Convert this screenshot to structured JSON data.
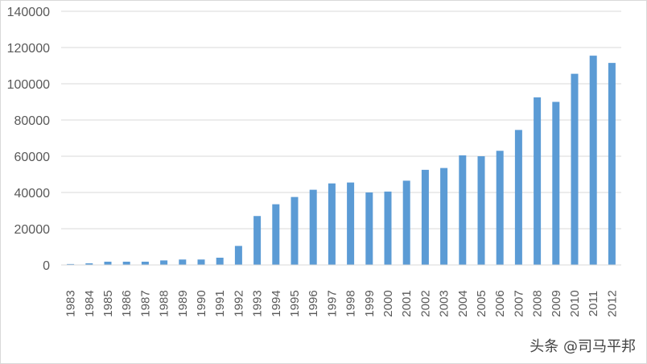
{
  "chart_data": {
    "type": "bar",
    "categories": [
      "1983",
      "1984",
      "1985",
      "1986",
      "1987",
      "1988",
      "1989",
      "1990",
      "1991",
      "1992",
      "1993",
      "1994",
      "1995",
      "1996",
      "1997",
      "1998",
      "1999",
      "2000",
      "2001",
      "2002",
      "2003",
      "2004",
      "2005",
      "2006",
      "2007",
      "2008",
      "2009",
      "2010",
      "2011",
      "2012"
    ],
    "values": [
      500,
      900,
      1800,
      1800,
      1800,
      2500,
      3000,
      3000,
      4000,
      10500,
      27000,
      33500,
      37500,
      41500,
      45000,
      45500,
      40000,
      40500,
      46500,
      52500,
      53500,
      60500,
      60000,
      63000,
      74500,
      92500,
      90000,
      105500,
      115500,
      111500
    ],
    "y_ticks": [
      "0",
      "20000",
      "40000",
      "60000",
      "80000",
      "100000",
      "120000",
      "140000"
    ],
    "ylim": [
      0,
      140000
    ],
    "grid": true,
    "bar_color": "#5b9bd5",
    "grid_color": "#d9d9d9",
    "axis_color": "#d9d9d9",
    "tick_color": "#595959"
  },
  "watermark": {
    "text": "头条 @司马平邦"
  }
}
